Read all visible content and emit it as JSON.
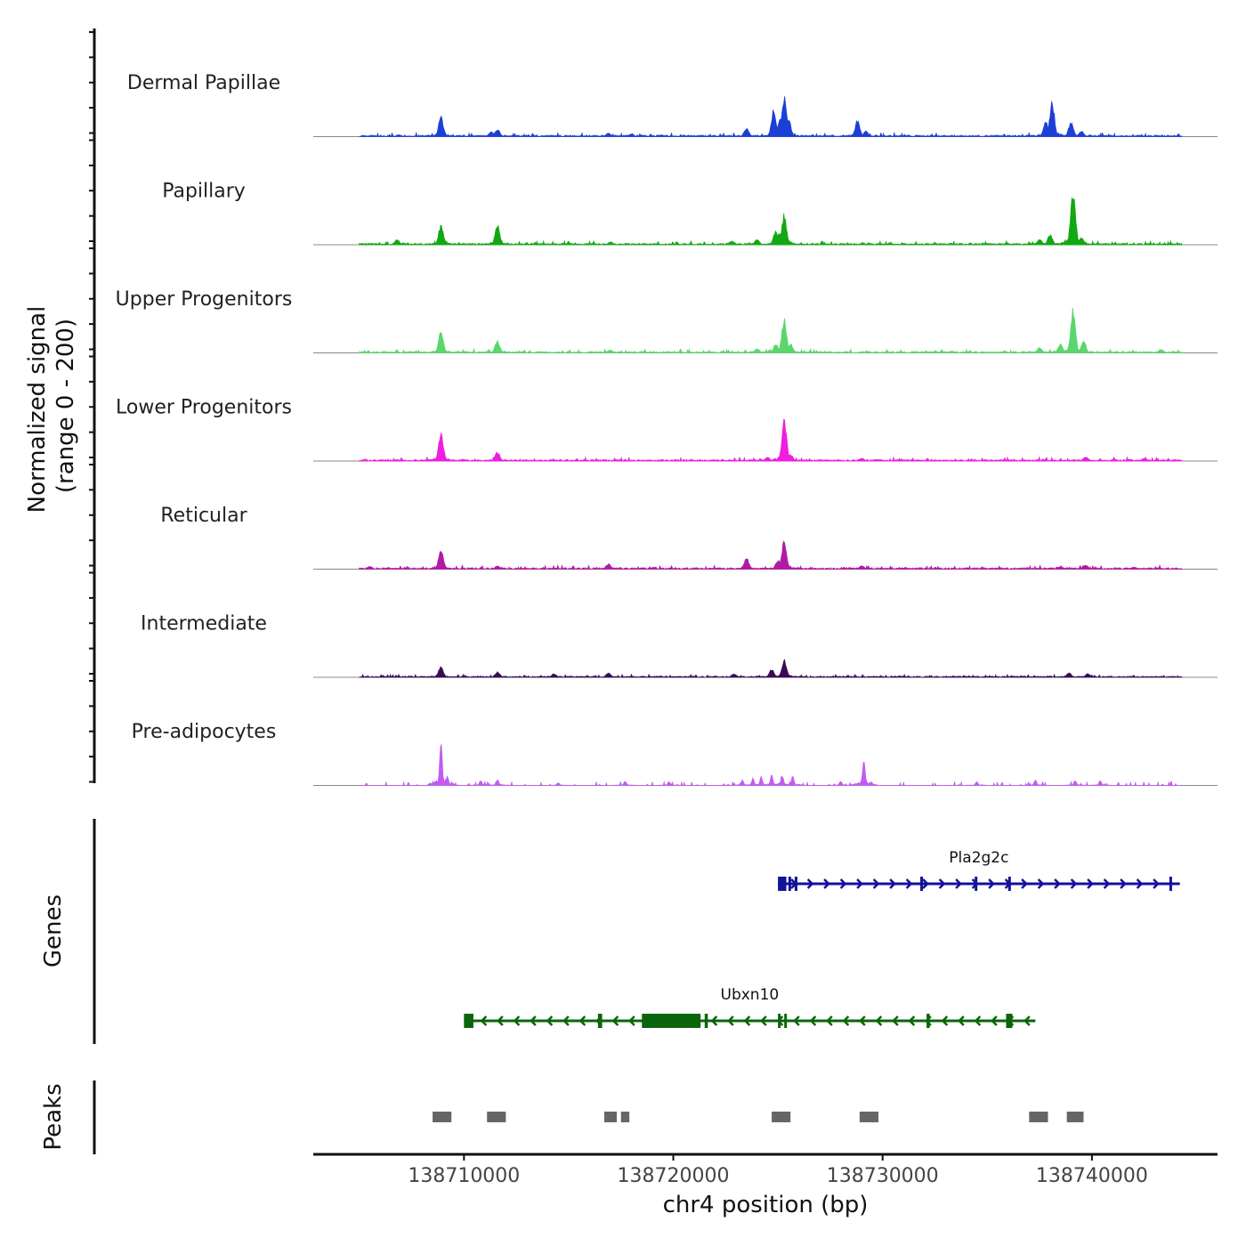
{
  "chart_data": {
    "type": "area",
    "title": "",
    "ylabel_line1": "Normalized signal",
    "ylabel_line2": "(range 0 - 200)",
    "genes_label": "Genes",
    "peaks_label": "Peaks",
    "xlabel": "chr4 position (bp)",
    "xlim": [
      138702800,
      138746000
    ],
    "x_ticks": [
      {
        "value": 138710000,
        "label": "138710000"
      },
      {
        "value": 138720000,
        "label": "138720000"
      },
      {
        "value": 138730000,
        "label": "138730000"
      },
      {
        "value": 138740000,
        "label": "138740000"
      }
    ],
    "ylim": [
      0,
      200
    ],
    "signal_x_range": [
      138705000,
      138744300
    ],
    "tracks": [
      {
        "name": "Dermal Papillae",
        "color": "#1c3fd6",
        "peaks": [
          [
            138705600,
            4
          ],
          [
            138706900,
            5
          ],
          [
            138708900,
            55
          ],
          [
            138711300,
            14
          ],
          [
            138711600,
            22
          ],
          [
            138716900,
            10
          ],
          [
            138718000,
            8
          ],
          [
            138723500,
            25
          ],
          [
            138724800,
            75
          ],
          [
            138725100,
            55
          ],
          [
            138725300,
            110
          ],
          [
            138725500,
            50
          ],
          [
            138728800,
            45
          ],
          [
            138729200,
            15
          ],
          [
            138737800,
            45
          ],
          [
            138738100,
            95
          ],
          [
            138739000,
            40
          ],
          [
            138739500,
            15
          ]
        ],
        "noise": 4
      },
      {
        "name": "Papillary",
        "color": "#12a812",
        "peaks": [
          [
            138706800,
            15
          ],
          [
            138708900,
            55
          ],
          [
            138711600,
            55
          ],
          [
            138715000,
            5
          ],
          [
            138717000,
            8
          ],
          [
            138722800,
            10
          ],
          [
            138724000,
            15
          ],
          [
            138724900,
            40
          ],
          [
            138725100,
            35
          ],
          [
            138725300,
            85
          ],
          [
            138737500,
            15
          ],
          [
            138738000,
            28
          ],
          [
            138739100,
            155
          ],
          [
            138739500,
            20
          ]
        ],
        "noise": 4
      },
      {
        "name": "Upper Progenitors",
        "color": "#5bd66c",
        "peaks": [
          [
            138708900,
            60
          ],
          [
            138711600,
            35
          ],
          [
            138717000,
            8
          ],
          [
            138724000,
            12
          ],
          [
            138724900,
            25
          ],
          [
            138725300,
            100
          ],
          [
            138725600,
            25
          ],
          [
            138737500,
            15
          ],
          [
            138738500,
            25
          ],
          [
            138739100,
            125
          ],
          [
            138739600,
            35
          ],
          [
            138743300,
            10
          ]
        ],
        "noise": 4
      },
      {
        "name": "Lower Progenitors",
        "color": "#ee1de0",
        "peaks": [
          [
            138708900,
            80
          ],
          [
            138711600,
            25
          ],
          [
            138724500,
            10
          ],
          [
            138725300,
            115
          ],
          [
            138725600,
            18
          ],
          [
            138729000,
            8
          ],
          [
            138739700,
            12
          ],
          [
            138742500,
            8
          ]
        ],
        "noise": 4
      },
      {
        "name": "Reticular",
        "color": "#b01aa5",
        "peaks": [
          [
            138705500,
            8
          ],
          [
            138708900,
            55
          ],
          [
            138711600,
            10
          ],
          [
            138716900,
            15
          ],
          [
            138723500,
            30
          ],
          [
            138725000,
            25
          ],
          [
            138725300,
            80
          ],
          [
            138729000,
            10
          ],
          [
            138738500,
            8
          ],
          [
            138739700,
            12
          ],
          [
            138742000,
            6
          ]
        ],
        "noise": 4
      },
      {
        "name": "Intermediate",
        "color": "#3b0a55",
        "peaks": [
          [
            138708900,
            30
          ],
          [
            138711600,
            15
          ],
          [
            138714300,
            10
          ],
          [
            138716900,
            12
          ],
          [
            138722900,
            10
          ],
          [
            138724700,
            22
          ],
          [
            138725300,
            50
          ],
          [
            138738900,
            12
          ],
          [
            138739800,
            10
          ]
        ],
        "noise": 3
      },
      {
        "name": "Pre-adipocytes",
        "color": "#c25cf0",
        "peaks": [
          [
            138708900,
            130
          ],
          [
            138709200,
            25
          ],
          [
            138710800,
            15
          ],
          [
            138711600,
            18
          ],
          [
            138714500,
            8
          ],
          [
            138717700,
            12
          ],
          [
            138719800,
            12
          ],
          [
            138723300,
            15
          ],
          [
            138723800,
            20
          ],
          [
            138724200,
            25
          ],
          [
            138724700,
            30
          ],
          [
            138725200,
            30
          ],
          [
            138725700,
            28
          ],
          [
            138728000,
            12
          ],
          [
            138729100,
            75
          ],
          [
            138734500,
            10
          ],
          [
            138737300,
            15
          ],
          [
            138739200,
            15
          ],
          [
            138740400,
            15
          ]
        ],
        "noise": 0
      }
    ],
    "genes": [
      {
        "name": "Pla2g2c",
        "color": "#12129a",
        "start": 138725000,
        "end": 138744200,
        "strand": "+",
        "exons": [
          [
            138725000,
            138725400
          ],
          [
            138725500,
            138725620
          ],
          [
            138725800,
            138725900
          ],
          [
            138731800,
            138731850
          ],
          [
            138734400,
            138734450
          ],
          [
            138736000,
            138736050
          ],
          [
            138743700,
            138743760
          ]
        ]
      },
      {
        "name": "Ubxn10",
        "color": "#0b650b",
        "start": 138710000,
        "end": 138737300,
        "strand": "-",
        "exons": [
          [
            138710000,
            138710450
          ],
          [
            138716400,
            138716600
          ],
          [
            138718500,
            138721300
          ],
          [
            138721500,
            138721650
          ],
          [
            138725000,
            138725050
          ],
          [
            138725300,
            138725350
          ],
          [
            138732100,
            138732250
          ],
          [
            138735900,
            138736200
          ]
        ]
      }
    ],
    "peak_regions": [
      [
        138708500,
        138709400
      ],
      [
        138711100,
        138712000
      ],
      [
        138716700,
        138717300
      ],
      [
        138717500,
        138717900
      ],
      [
        138724700,
        138725600
      ],
      [
        138728900,
        138729800
      ],
      [
        138737000,
        138737900
      ],
      [
        138738800,
        138739600
      ]
    ]
  }
}
